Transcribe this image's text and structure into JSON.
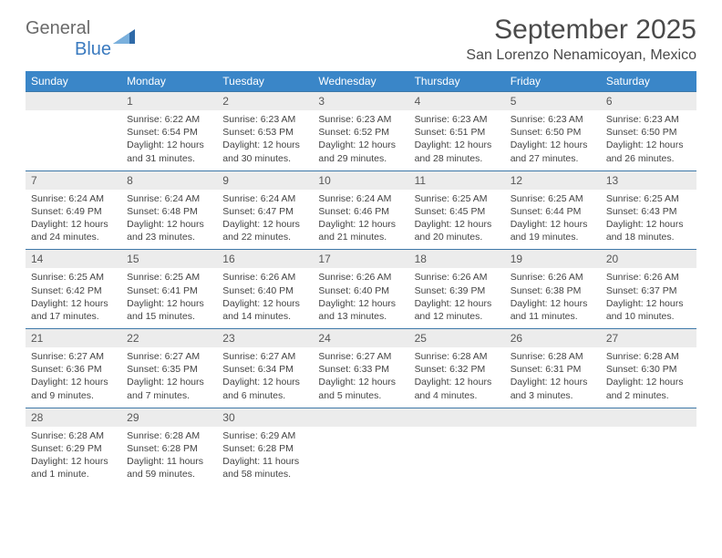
{
  "logo": {
    "top": "General",
    "bottom": "Blue"
  },
  "title": "September 2025",
  "location": "San Lorenzo Nenamicoyan, Mexico",
  "colors": {
    "header_bg": "#3a86c8",
    "header_text": "#ffffff",
    "daynum_bg": "#ececec",
    "daynum_text": "#575757",
    "row_border": "#3e78a8",
    "body_text": "#444444",
    "logo_gray": "#6a6a6a",
    "logo_blue": "#3a7abf"
  },
  "typography": {
    "title_fontsize": 30,
    "location_fontsize": 16,
    "header_fontsize": 12,
    "daynum_fontsize": 12,
    "content_fontsize": 10.5
  },
  "weekdays": [
    "Sunday",
    "Monday",
    "Tuesday",
    "Wednesday",
    "Thursday",
    "Friday",
    "Saturday"
  ],
  "weeks": [
    [
      {
        "empty": true
      },
      {
        "day": "1",
        "sunrise": "6:22 AM",
        "sunset": "6:54 PM",
        "daylight": "12 hours and 31 minutes."
      },
      {
        "day": "2",
        "sunrise": "6:23 AM",
        "sunset": "6:53 PM",
        "daylight": "12 hours and 30 minutes."
      },
      {
        "day": "3",
        "sunrise": "6:23 AM",
        "sunset": "6:52 PM",
        "daylight": "12 hours and 29 minutes."
      },
      {
        "day": "4",
        "sunrise": "6:23 AM",
        "sunset": "6:51 PM",
        "daylight": "12 hours and 28 minutes."
      },
      {
        "day": "5",
        "sunrise": "6:23 AM",
        "sunset": "6:50 PM",
        "daylight": "12 hours and 27 minutes."
      },
      {
        "day": "6",
        "sunrise": "6:23 AM",
        "sunset": "6:50 PM",
        "daylight": "12 hours and 26 minutes."
      }
    ],
    [
      {
        "day": "7",
        "sunrise": "6:24 AM",
        "sunset": "6:49 PM",
        "daylight": "12 hours and 24 minutes."
      },
      {
        "day": "8",
        "sunrise": "6:24 AM",
        "sunset": "6:48 PM",
        "daylight": "12 hours and 23 minutes."
      },
      {
        "day": "9",
        "sunrise": "6:24 AM",
        "sunset": "6:47 PM",
        "daylight": "12 hours and 22 minutes."
      },
      {
        "day": "10",
        "sunrise": "6:24 AM",
        "sunset": "6:46 PM",
        "daylight": "12 hours and 21 minutes."
      },
      {
        "day": "11",
        "sunrise": "6:25 AM",
        "sunset": "6:45 PM",
        "daylight": "12 hours and 20 minutes."
      },
      {
        "day": "12",
        "sunrise": "6:25 AM",
        "sunset": "6:44 PM",
        "daylight": "12 hours and 19 minutes."
      },
      {
        "day": "13",
        "sunrise": "6:25 AM",
        "sunset": "6:43 PM",
        "daylight": "12 hours and 18 minutes."
      }
    ],
    [
      {
        "day": "14",
        "sunrise": "6:25 AM",
        "sunset": "6:42 PM",
        "daylight": "12 hours and 17 minutes."
      },
      {
        "day": "15",
        "sunrise": "6:25 AM",
        "sunset": "6:41 PM",
        "daylight": "12 hours and 15 minutes."
      },
      {
        "day": "16",
        "sunrise": "6:26 AM",
        "sunset": "6:40 PM",
        "daylight": "12 hours and 14 minutes."
      },
      {
        "day": "17",
        "sunrise": "6:26 AM",
        "sunset": "6:40 PM",
        "daylight": "12 hours and 13 minutes."
      },
      {
        "day": "18",
        "sunrise": "6:26 AM",
        "sunset": "6:39 PM",
        "daylight": "12 hours and 12 minutes."
      },
      {
        "day": "19",
        "sunrise": "6:26 AM",
        "sunset": "6:38 PM",
        "daylight": "12 hours and 11 minutes."
      },
      {
        "day": "20",
        "sunrise": "6:26 AM",
        "sunset": "6:37 PM",
        "daylight": "12 hours and 10 minutes."
      }
    ],
    [
      {
        "day": "21",
        "sunrise": "6:27 AM",
        "sunset": "6:36 PM",
        "daylight": "12 hours and 9 minutes."
      },
      {
        "day": "22",
        "sunrise": "6:27 AM",
        "sunset": "6:35 PM",
        "daylight": "12 hours and 7 minutes."
      },
      {
        "day": "23",
        "sunrise": "6:27 AM",
        "sunset": "6:34 PM",
        "daylight": "12 hours and 6 minutes."
      },
      {
        "day": "24",
        "sunrise": "6:27 AM",
        "sunset": "6:33 PM",
        "daylight": "12 hours and 5 minutes."
      },
      {
        "day": "25",
        "sunrise": "6:28 AM",
        "sunset": "6:32 PM",
        "daylight": "12 hours and 4 minutes."
      },
      {
        "day": "26",
        "sunrise": "6:28 AM",
        "sunset": "6:31 PM",
        "daylight": "12 hours and 3 minutes."
      },
      {
        "day": "27",
        "sunrise": "6:28 AM",
        "sunset": "6:30 PM",
        "daylight": "12 hours and 2 minutes."
      }
    ],
    [
      {
        "day": "28",
        "sunrise": "6:28 AM",
        "sunset": "6:29 PM",
        "daylight": "12 hours and 1 minute."
      },
      {
        "day": "29",
        "sunrise": "6:28 AM",
        "sunset": "6:28 PM",
        "daylight": "11 hours and 59 minutes."
      },
      {
        "day": "30",
        "sunrise": "6:29 AM",
        "sunset": "6:28 PM",
        "daylight": "11 hours and 58 minutes."
      },
      {
        "empty": true
      },
      {
        "empty": true
      },
      {
        "empty": true
      },
      {
        "empty": true
      }
    ]
  ],
  "labels": {
    "sunrise": "Sunrise:",
    "sunset": "Sunset:",
    "daylight": "Daylight:"
  }
}
